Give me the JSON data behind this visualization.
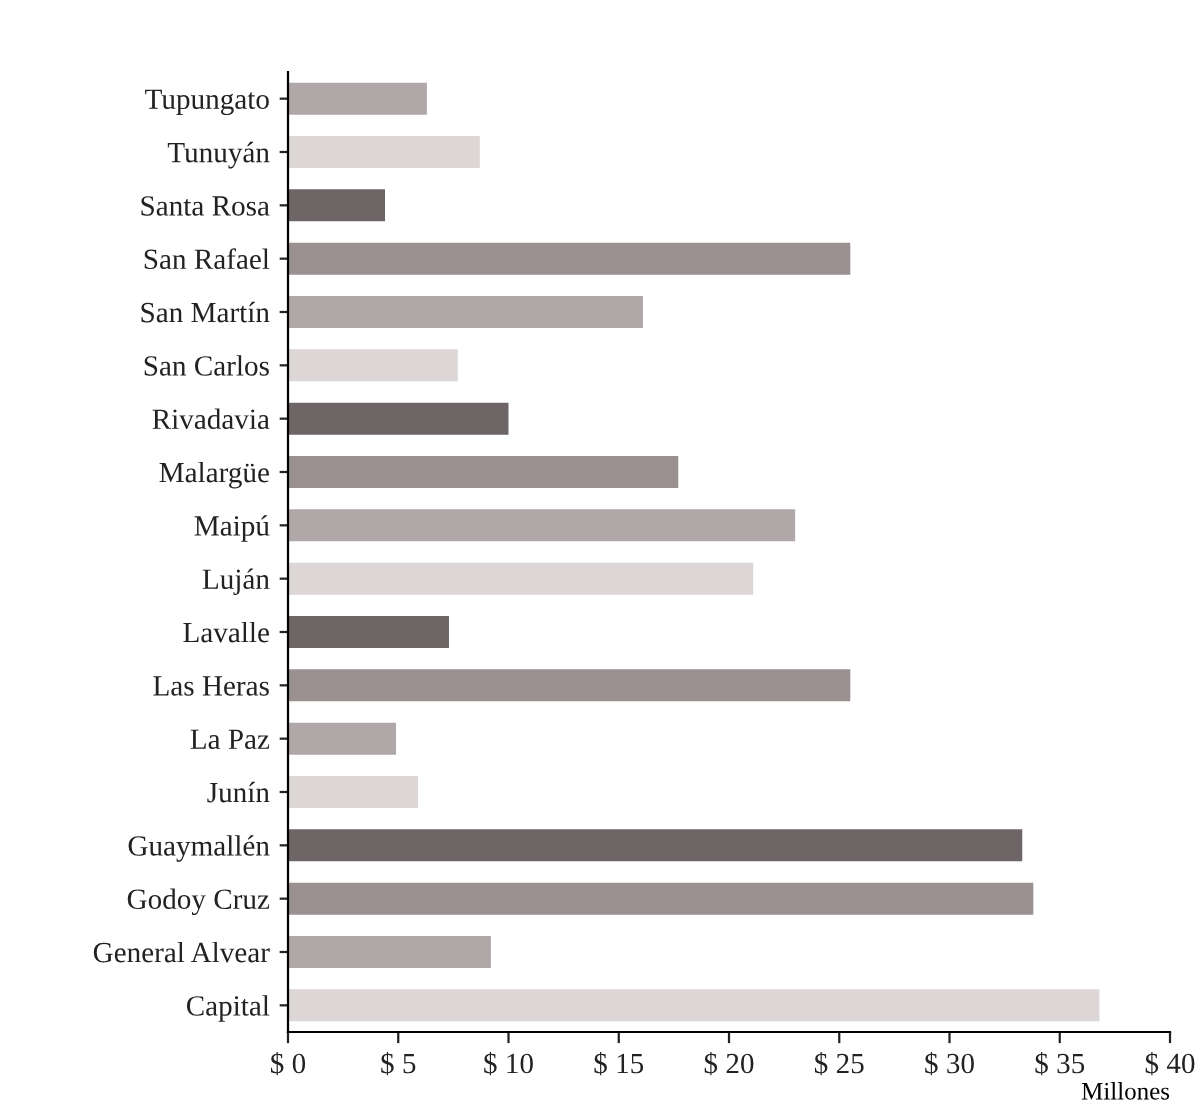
{
  "chart_data": {
    "type": "bar",
    "orientation": "horizontal",
    "xlabel": "Millones",
    "categories": [
      "Tupungato",
      "Tunuyán",
      "Santa Rosa",
      "San Rafael",
      "San Martín",
      "San Carlos",
      "Rivadavia",
      "Malargüe",
      "Maipú",
      "Luján",
      "Lavalle",
      "Las Heras",
      "La Paz",
      "Junín",
      "Guaymallén",
      "Godoy Cruz",
      "General Alvear",
      "Capital"
    ],
    "values": [
      6.3,
      8.7,
      4.4,
      25.5,
      16.1,
      7.7,
      10.0,
      17.7,
      23.0,
      21.1,
      7.3,
      25.5,
      4.9,
      5.9,
      33.3,
      33.8,
      9.2,
      36.8
    ],
    "colors": [
      "#b0a8a8",
      "#dcd6d6",
      "#6e6666",
      "#9a9090",
      "#b0a8a8",
      "#dcd6d6",
      "#6e6666",
      "#9a9090",
      "#b0a8a8",
      "#dcd6d6",
      "#6e6666",
      "#9a9090",
      "#b0a8a8",
      "#dcd6d6",
      "#6e6666",
      "#9a9090",
      "#b0a8a8",
      "#dcd6d6"
    ],
    "xlim": [
      0,
      40
    ],
    "xticks": [
      {
        "value": 0,
        "label": "$ 0"
      },
      {
        "value": 5,
        "label": "$ 5"
      },
      {
        "value": 10,
        "label": "$ 10"
      },
      {
        "value": 15,
        "label": "$ 15"
      },
      {
        "value": 20,
        "label": "$ 20"
      },
      {
        "value": 25,
        "label": "$ 25"
      },
      {
        "value": 30,
        "label": "$ 30"
      },
      {
        "value": 35,
        "label": "$ 35"
      },
      {
        "value": 40,
        "label": "$ 40"
      }
    ],
    "grid": false,
    "legend": false
  }
}
